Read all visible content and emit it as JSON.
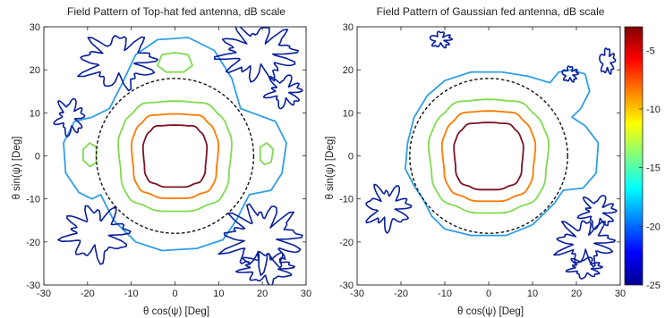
{
  "chart_data": [
    {
      "type": "contour",
      "title": "Field Pattern of Top-hat fed antenna, dB scale",
      "xlabel": "θ cos(ψ) [Deg]",
      "ylabel": "θ sin(ψ) [Deg]",
      "xlim": [
        -30,
        30
      ],
      "ylim": [
        -30,
        30
      ],
      "xticks": [
        -30,
        -20,
        -10,
        0,
        10,
        20,
        30
      ],
      "yticks": [
        -30,
        -20,
        -10,
        0,
        10,
        20,
        30
      ],
      "reference_circle_radius": 18,
      "contours": [
        {
          "level": -3,
          "color": "#7a1424",
          "shape": "superellipse",
          "rx": 7.2,
          "ry": 7.2,
          "n": 3.2
        },
        {
          "level": -7,
          "color": "#ff7a00",
          "shape": "superellipse",
          "rx": 9.8,
          "ry": 9.8,
          "n": 3.0
        },
        {
          "level": -12,
          "color": "#7fdc4e",
          "shape": "superellipse",
          "rx": 12.8,
          "ry": 12.8,
          "n": 2.8
        },
        {
          "level": -12,
          "color": "#7fdc4e",
          "shape": "polygon",
          "points": [
            [
              -4,
              21
            ],
            [
              -3,
              23.5
            ],
            [
              0,
              24
            ],
            [
              3,
              23.5
            ],
            [
              4,
              21
            ],
            [
              2,
              19.5
            ],
            [
              -2,
              19.5
            ]
          ]
        },
        {
          "level": -12,
          "color": "#7fdc4e",
          "shape": "polygon",
          "points": [
            [
              -21,
              -1
            ],
            [
              -21,
              1.5
            ],
            [
              -19.5,
              3
            ],
            [
              -18,
              2
            ],
            [
              -18,
              -1.5
            ],
            [
              -19.5,
              -2.5
            ]
          ]
        },
        {
          "level": -12,
          "color": "#7fdc4e",
          "shape": "polygon",
          "points": [
            [
              19.5,
              -1
            ],
            [
              19.5,
              2
            ],
            [
              21,
              3
            ],
            [
              22.5,
              1.5
            ],
            [
              22,
              -1.5
            ],
            [
              20.5,
              -2
            ]
          ]
        },
        {
          "level": -18,
          "color": "#2f9ee8",
          "shape": "polygon",
          "points": [
            [
              -17,
              -9
            ],
            [
              -19,
              -10
            ],
            [
              -22,
              -8.5
            ],
            [
              -25,
              -4
            ],
            [
              -25.5,
              3
            ],
            [
              -23,
              8
            ],
            [
              -19,
              9
            ],
            [
              -15,
              11
            ],
            [
              -12,
              17
            ],
            [
              -9,
              23.5
            ],
            [
              -4,
              27
            ],
            [
              3,
              27.5
            ],
            [
              9,
              24.5
            ],
            [
              13,
              18
            ],
            [
              15,
              11
            ],
            [
              19,
              9.5
            ],
            [
              23,
              8
            ],
            [
              25.5,
              3
            ],
            [
              24.5,
              -4
            ],
            [
              22,
              -8
            ],
            [
              17,
              -9
            ],
            [
              14,
              -15
            ],
            [
              11,
              -19.5
            ],
            [
              5,
              -21.5
            ],
            [
              -3,
              -22
            ],
            [
              -9,
              -20
            ],
            [
              -14,
              -15
            ]
          ]
        },
        {
          "level": -24,
          "color": "#0a1f9a",
          "shape": "scribble",
          "cx": -13,
          "cy": 22,
          "rx": 7,
          "ry": 5,
          "amp": 1.8,
          "freq": 9
        },
        {
          "level": -24,
          "color": "#0a1f9a",
          "shape": "scribble",
          "cx": 19,
          "cy": 24,
          "rx": 7,
          "ry": 5,
          "amp": 2.0,
          "freq": 10
        },
        {
          "level": -24,
          "color": "#0a1f9a",
          "shape": "scribble",
          "cx": -18,
          "cy": -18,
          "rx": 6,
          "ry": 5,
          "amp": 1.6,
          "freq": 8
        },
        {
          "level": -24,
          "color": "#0a1f9a",
          "shape": "scribble",
          "cx": 20,
          "cy": -19,
          "rx": 7,
          "ry": 6,
          "amp": 2.0,
          "freq": 11
        },
        {
          "level": -24,
          "color": "#0a1f9a",
          "shape": "scribble",
          "cx": 21,
          "cy": -26,
          "rx": 5,
          "ry": 3,
          "amp": 1.2,
          "freq": 8
        },
        {
          "level": -24,
          "color": "#0a1f9a",
          "shape": "scribble",
          "cx": -24,
          "cy": 9,
          "rx": 2.5,
          "ry": 3.5,
          "amp": 1,
          "freq": 6
        },
        {
          "level": -24,
          "color": "#0a1f9a",
          "shape": "scribble",
          "cx": 25,
          "cy": 15,
          "rx": 3,
          "ry": 3,
          "amp": 1,
          "freq": 6
        }
      ]
    },
    {
      "type": "contour",
      "title": "Field Pattern of Gaussian fed antenna, dB scale",
      "xlabel": "θ cos(ψ) [Deg]",
      "ylabel": "θ sin(ψ) [Deg]",
      "xlim": [
        -30,
        30
      ],
      "ylim": [
        -30,
        30
      ],
      "xticks": [
        -30,
        -20,
        -10,
        0,
        10,
        20,
        30
      ],
      "yticks": [
        -30,
        -20,
        -10,
        0,
        10,
        20,
        30
      ],
      "reference_circle_radius": 18,
      "contours": [
        {
          "level": -3,
          "color": "#7a1424",
          "shape": "superellipse",
          "rx": 7.8,
          "ry": 7.8,
          "n": 3.0
        },
        {
          "level": -7,
          "color": "#ff7a00",
          "shape": "superellipse",
          "rx": 10.5,
          "ry": 10.5,
          "n": 2.8
        },
        {
          "level": -12,
          "color": "#7fdc4e",
          "shape": "superellipse",
          "rx": 13.5,
          "ry": 13.2,
          "n": 2.6
        },
        {
          "level": -18,
          "color": "#2f9ee8",
          "shape": "polygon",
          "points": [
            [
              -15,
              -10
            ],
            [
              -17,
              -7
            ],
            [
              -19,
              -3
            ],
            [
              -18.5,
              3
            ],
            [
              -17,
              9
            ],
            [
              -14,
              14
            ],
            [
              -10,
              17.5
            ],
            [
              -4,
              19.5
            ],
            [
              3,
              19.5
            ],
            [
              9,
              18.5
            ],
            [
              14,
              17
            ],
            [
              16,
              19.5
            ],
            [
              19,
              20
            ],
            [
              22,
              19
            ],
            [
              23,
              15
            ],
            [
              21,
              11
            ],
            [
              19,
              9
            ],
            [
              22,
              7
            ],
            [
              25,
              3
            ],
            [
              24.5,
              -4
            ],
            [
              21.5,
              -7.5
            ],
            [
              17,
              -8
            ],
            [
              15,
              -11
            ],
            [
              10,
              -16
            ],
            [
              4,
              -18.5
            ],
            [
              -4,
              -18.5
            ],
            [
              -10,
              -17
            ],
            [
              -13,
              -14
            ]
          ]
        },
        {
          "level": -24,
          "color": "#0a1f9a",
          "shape": "scribble",
          "cx": -23,
          "cy": -12,
          "rx": 4,
          "ry": 4,
          "amp": 1.2,
          "freq": 7
        },
        {
          "level": -24,
          "color": "#0a1f9a",
          "shape": "scribble",
          "cx": 22,
          "cy": -20,
          "rx": 5,
          "ry": 4,
          "amp": 1.6,
          "freq": 9
        },
        {
          "level": -24,
          "color": "#0a1f9a",
          "shape": "scribble",
          "cx": 25,
          "cy": -13,
          "rx": 3,
          "ry": 3,
          "amp": 1,
          "freq": 6
        },
        {
          "level": -24,
          "color": "#0a1f9a",
          "shape": "scribble",
          "cx": 18.5,
          "cy": 19,
          "rx": 1.5,
          "ry": 1.5,
          "amp": 0.4,
          "freq": 5
        },
        {
          "level": -24,
          "color": "#0a1f9a",
          "shape": "scribble",
          "cx": 22,
          "cy": -26,
          "rx": 3,
          "ry": 2,
          "amp": 0.8,
          "freq": 6
        },
        {
          "level": -24,
          "color": "#0a1f9a",
          "shape": "scribble",
          "cx": -11,
          "cy": 27,
          "rx": 2,
          "ry": 1.5,
          "amp": 0.6,
          "freq": 5
        },
        {
          "level": -24,
          "color": "#0a1f9a",
          "shape": "scribble",
          "cx": 27,
          "cy": 22,
          "rx": 1.5,
          "ry": 2.5,
          "amp": 0.6,
          "freq": 5
        }
      ]
    }
  ],
  "colorbar": {
    "min": -25,
    "max": -3,
    "ticks": [
      -5,
      -10,
      -15,
      -20,
      -25
    ],
    "colors": [
      "#00008f",
      "#0000ff",
      "#0080ff",
      "#00ffff",
      "#80ff80",
      "#ffff00",
      "#ff8000",
      "#ff0000",
      "#800000"
    ]
  }
}
